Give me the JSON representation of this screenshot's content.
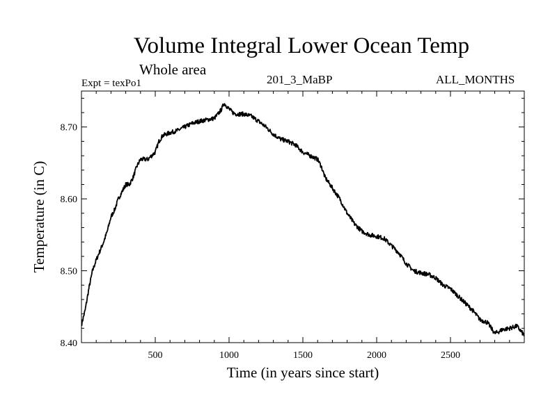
{
  "chart_data": {
    "type": "line",
    "title": "Volume Integral Lower Ocean Temp",
    "subtitle": "Whole area",
    "annotations": {
      "experiment": "Expt = texPo1",
      "run": "201_3_MaBP",
      "period": "ALL_MONTHS"
    },
    "xlabel": "Time (in years since start)",
    "ylabel": "Temperature (in C)",
    "xlim": [
      0,
      3000
    ],
    "ylim": [
      8.4,
      8.75
    ],
    "x_ticks": [
      500,
      1000,
      1500,
      2000,
      2500
    ],
    "y_ticks": [
      "8.40",
      "8.50",
      "8.60",
      "8.70"
    ],
    "grid": false,
    "legend": "none",
    "line_color": "#000000",
    "series": [
      {
        "x": [
          0,
          25,
          50,
          75,
          100,
          130,
          150,
          175,
          200,
          225,
          250,
          275,
          300,
          325,
          350,
          375,
          400,
          425,
          450,
          475,
          500,
          525,
          550,
          600,
          650,
          700,
          750,
          800,
          850,
          900,
          925,
          950,
          965,
          980,
          1000,
          1025,
          1050,
          1075,
          1100,
          1150,
          1200,
          1250,
          1300,
          1350,
          1400,
          1450,
          1500,
          1550,
          1600,
          1625,
          1650,
          1700,
          1750,
          1800,
          1850,
          1900,
          1950,
          2000,
          2050,
          2100,
          2150,
          2200,
          2250,
          2300,
          2350,
          2400,
          2450,
          2500,
          2550,
          2600,
          2650,
          2700,
          2750,
          2800,
          2825,
          2850,
          2900,
          2950,
          3000
        ],
        "y": [
          8.425,
          8.445,
          8.475,
          8.5,
          8.515,
          8.53,
          8.54,
          8.555,
          8.575,
          8.585,
          8.6,
          8.61,
          8.62,
          8.62,
          8.63,
          8.645,
          8.655,
          8.655,
          8.655,
          8.66,
          8.665,
          8.68,
          8.688,
          8.692,
          8.695,
          8.7,
          8.705,
          8.708,
          8.71,
          8.712,
          8.718,
          8.725,
          8.733,
          8.73,
          8.725,
          8.72,
          8.718,
          8.718,
          8.718,
          8.715,
          8.708,
          8.7,
          8.69,
          8.683,
          8.68,
          8.675,
          8.665,
          8.66,
          8.655,
          8.645,
          8.63,
          8.615,
          8.6,
          8.58,
          8.565,
          8.555,
          8.55,
          8.548,
          8.545,
          8.535,
          8.525,
          8.51,
          8.5,
          8.497,
          8.495,
          8.49,
          8.48,
          8.475,
          8.465,
          8.455,
          8.445,
          8.432,
          8.428,
          8.413,
          8.415,
          8.418,
          8.42,
          8.423,
          8.41
        ]
      }
    ]
  }
}
